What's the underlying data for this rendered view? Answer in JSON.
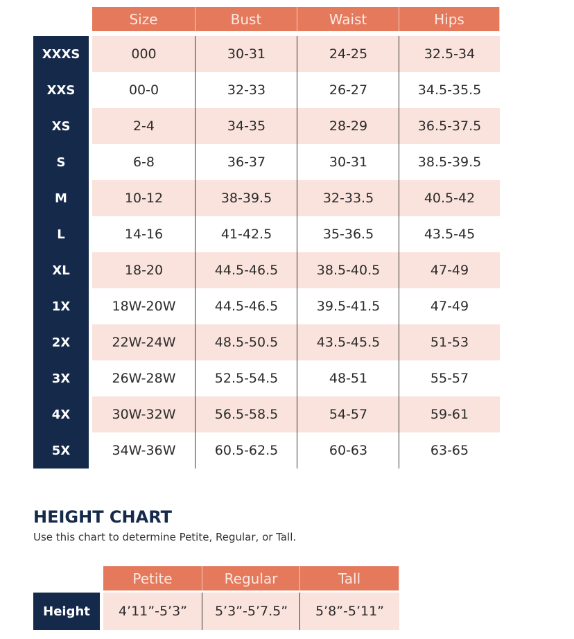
{
  "size_chart": {
    "headers": [
      "Size",
      "Bust",
      "Waist",
      "Hips"
    ],
    "rows": [
      {
        "label": "XXXS",
        "values": [
          "000",
          "30-31",
          "24-25",
          "32.5-34"
        ]
      },
      {
        "label": "XXS",
        "values": [
          "00-0",
          "32-33",
          "26-27",
          "34.5-35.5"
        ]
      },
      {
        "label": "XS",
        "values": [
          "2-4",
          "34-35",
          "28-29",
          "36.5-37.5"
        ]
      },
      {
        "label": "S",
        "values": [
          "6-8",
          "36-37",
          "30-31",
          "38.5-39.5"
        ]
      },
      {
        "label": "M",
        "values": [
          "10-12",
          "38-39.5",
          "32-33.5",
          "40.5-42"
        ]
      },
      {
        "label": "L",
        "values": [
          "14-16",
          "41-42.5",
          "35-36.5",
          "43.5-45"
        ]
      },
      {
        "label": "XL",
        "values": [
          "18-20",
          "44.5-46.5",
          "38.5-40.5",
          "47-49"
        ]
      },
      {
        "label": "1X",
        "values": [
          "18W-20W",
          "44.5-46.5",
          "39.5-41.5",
          "47-49"
        ]
      },
      {
        "label": "2X",
        "values": [
          "22W-24W",
          "48.5-50.5",
          "43.5-45.5",
          "51-53"
        ]
      },
      {
        "label": "3X",
        "values": [
          "26W-28W",
          "52.5-54.5",
          "48-51",
          "55-57"
        ]
      },
      {
        "label": "4X",
        "values": [
          "30W-32W",
          "56.5-58.5",
          "54-57",
          "59-61"
        ]
      },
      {
        "label": "5X",
        "values": [
          "34W-36W",
          "60.5-62.5",
          "60-63",
          "63-65"
        ]
      }
    ]
  },
  "height_chart": {
    "title": "HEIGHT CHART",
    "subtitle": "Use this chart to determine Petite, Regular, or Tall.",
    "headers": [
      "Petite",
      "Regular",
      "Tall"
    ],
    "row": {
      "label": "Height",
      "values": [
        "4’11”-5’3”",
        "5’3”-5’7.5”",
        "5’8”-5’11”"
      ]
    }
  },
  "colors": {
    "header": "#e4795c",
    "row_alt": "#fae3dd",
    "label_bg": "#15294b"
  }
}
